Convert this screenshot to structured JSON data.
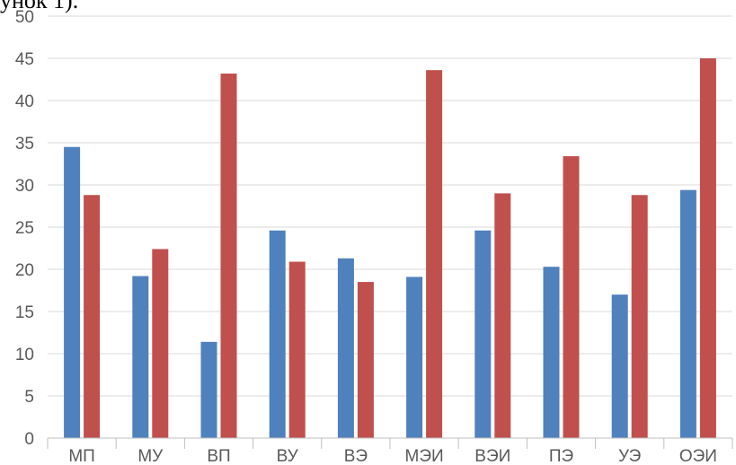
{
  "top_fragment_text": "унок 1).",
  "chart_data": {
    "type": "bar",
    "title": "",
    "xlabel": "",
    "ylabel": "",
    "ylim": [
      0,
      50
    ],
    "yticks": [
      "0",
      "5",
      "10",
      "15",
      "20",
      "25",
      "30",
      "35",
      "40",
      "45",
      "50"
    ],
    "grid": true,
    "legend": "none",
    "categories": [
      "МП",
      "МУ",
      "ВП",
      "ВУ",
      "ВЭ",
      "МЭИ",
      "ВЭИ",
      "ПЭ",
      "УЭ",
      "ОЭИ"
    ],
    "series": [
      {
        "values": [
          34.5,
          19.2,
          11.4,
          24.6,
          21.3,
          19.1,
          24.6,
          20.3,
          17.0,
          29.4
        ],
        "color": "#4f81bd"
      },
      {
        "values": [
          28.8,
          22.4,
          43.2,
          20.9,
          18.5,
          43.6,
          29.0,
          33.4,
          28.8,
          45.0
        ],
        "color": "#c0504d"
      }
    ]
  }
}
